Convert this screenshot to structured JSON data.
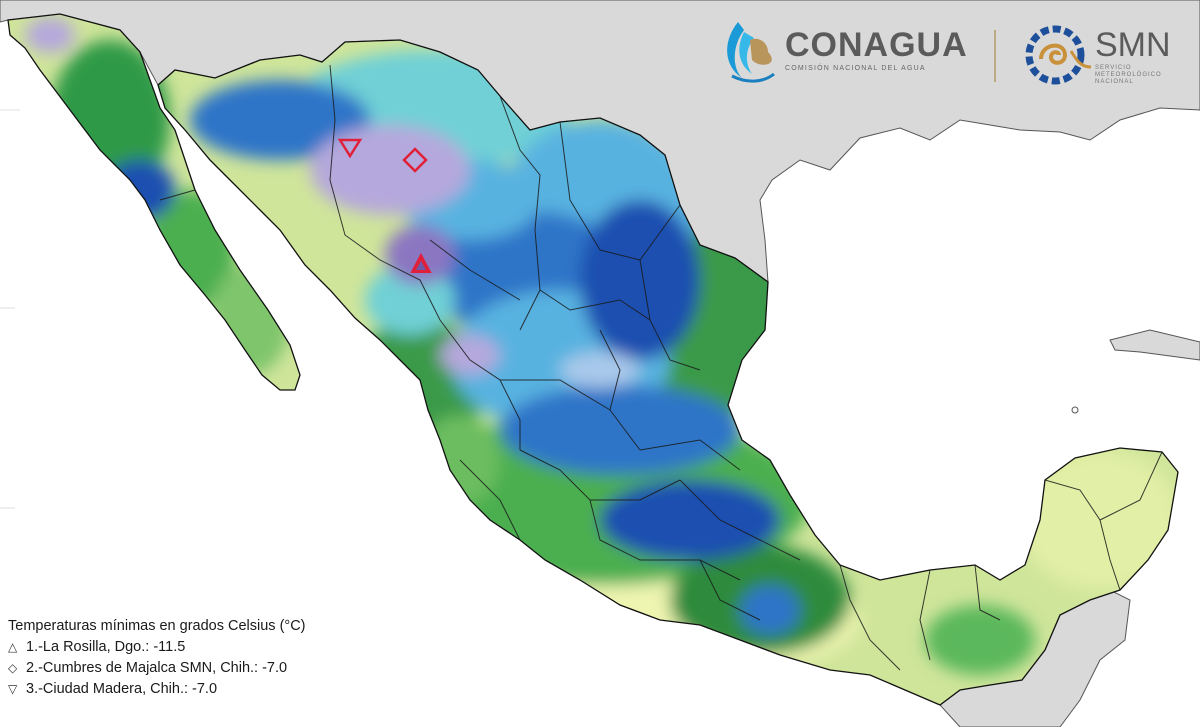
{
  "logos": {
    "conagua_name": "CONAGUA",
    "conagua_subtitle": "COMISIÓN NACIONAL DEL AGUA",
    "smn_name": "SMN",
    "smn_subtitle_lines": [
      "SERVICIO",
      "METEOROLÓGICO",
      "NACIONAL"
    ]
  },
  "legend": {
    "title": "Temperaturas mínimas en grados Celsius (°C)",
    "items": [
      {
        "symbol": "△",
        "icon": "triangle-up-icon",
        "text": "1.-La Rosilla, Dgo.: -11.5"
      },
      {
        "symbol": "◇",
        "icon": "diamond-icon",
        "text": "2.-Cumbres de Majalca SMN, Chih.: -7.0"
      },
      {
        "symbol": "▽",
        "icon": "triangle-down-icon",
        "text": "3.-Ciudad Madera, Chih.: -7.0"
      }
    ]
  },
  "colors": {
    "ocean": "#ffffff",
    "land_outside": "#d9d9d9",
    "light_yellow": "#eef5b0",
    "yellow_green": "#cfe59a",
    "light_green": "#9fd37e",
    "green": "#4caf50",
    "dark_green": "#2e8b3e",
    "teal": "#5cc6a8",
    "cyan": "#6fd0d6",
    "light_blue": "#59b2e0",
    "blue": "#2f74c8",
    "dark_blue": "#1f4fb0",
    "lavender": "#b5a8dc",
    "purple": "#8b76c2",
    "marker": "#e0203a"
  }
}
